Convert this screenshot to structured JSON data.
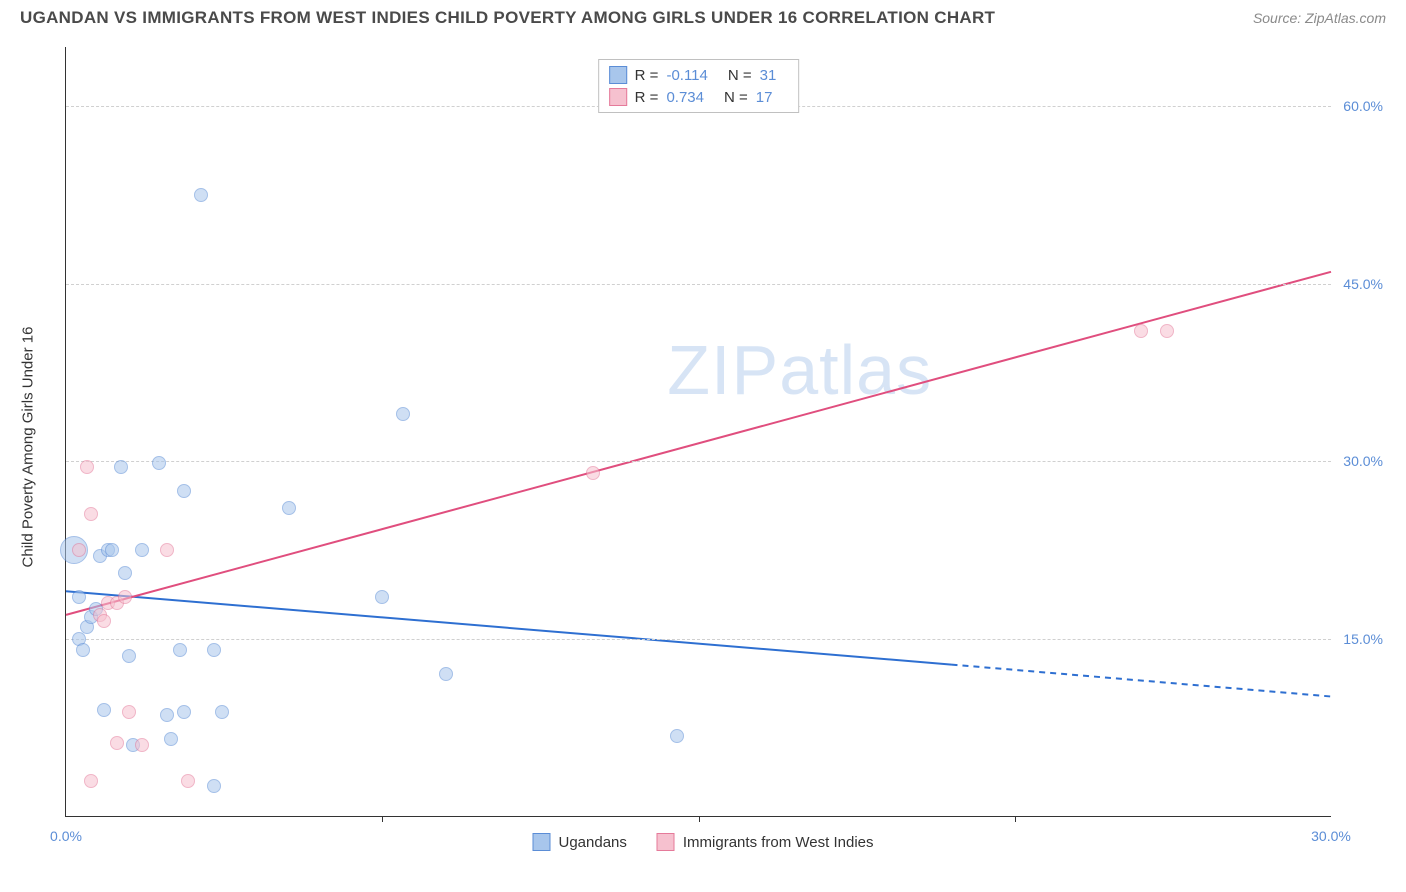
{
  "title": "UGANDAN VS IMMIGRANTS FROM WEST INDIES CHILD POVERTY AMONG GIRLS UNDER 16 CORRELATION CHART",
  "source": "Source: ZipAtlas.com",
  "watermark_a": "ZIP",
  "watermark_b": "atlas",
  "chart": {
    "type": "scatter",
    "background_color": "#ffffff",
    "grid_color": "#d0d0d0",
    "axis_color": "#333333",
    "ylabel": "Child Poverty Among Girls Under 16",
    "label_fontsize": 15,
    "tick_fontsize": 14,
    "tick_color": "#5b8dd6",
    "xlim": [
      0,
      30
    ],
    "ylim": [
      0,
      65
    ],
    "xticks": [
      {
        "v": 0.0,
        "label": "0.0%"
      },
      {
        "v": 30.0,
        "label": "30.0%"
      }
    ],
    "xtick_marks": [
      7.5,
      15.0,
      22.5
    ],
    "yticks": [
      {
        "v": 15.0,
        "label": "15.0%"
      },
      {
        "v": 30.0,
        "label": "30.0%"
      },
      {
        "v": 45.0,
        "label": "45.0%"
      },
      {
        "v": 60.0,
        "label": "60.0%"
      }
    ],
    "marker_radius": 7,
    "marker_opacity": 0.55,
    "series": {
      "a": {
        "name": "Ugandans",
        "fill": "#a8c6ec",
        "stroke": "#5b8dd6",
        "line_color": "#2e6fd1",
        "R_label": "R = ",
        "R": "-0.114",
        "N_label": "N = ",
        "N": "31",
        "trend": {
          "x1": 0,
          "y1": 19.0,
          "x2": 21.0,
          "y2": 12.8,
          "ext_x2": 30.0,
          "ext_y2": 10.1
        },
        "points": [
          {
            "x": 0.2,
            "y": 22.5,
            "r": 14
          },
          {
            "x": 3.2,
            "y": 52.5
          },
          {
            "x": 0.3,
            "y": 15.0
          },
          {
            "x": 0.5,
            "y": 16.0
          },
          {
            "x": 0.6,
            "y": 16.8
          },
          {
            "x": 0.7,
            "y": 17.5
          },
          {
            "x": 0.8,
            "y": 22.0
          },
          {
            "x": 1.0,
            "y": 22.5
          },
          {
            "x": 1.1,
            "y": 22.5
          },
          {
            "x": 1.3,
            "y": 29.5
          },
          {
            "x": 1.4,
            "y": 20.5
          },
          {
            "x": 1.5,
            "y": 13.5
          },
          {
            "x": 1.6,
            "y": 6.0
          },
          {
            "x": 1.8,
            "y": 22.5
          },
          {
            "x": 2.2,
            "y": 29.8
          },
          {
            "x": 2.4,
            "y": 8.5
          },
          {
            "x": 2.5,
            "y": 6.5
          },
          {
            "x": 2.7,
            "y": 14.0
          },
          {
            "x": 2.8,
            "y": 8.8
          },
          {
            "x": 2.8,
            "y": 27.5
          },
          {
            "x": 3.5,
            "y": 14.0
          },
          {
            "x": 3.5,
            "y": 2.5
          },
          {
            "x": 3.7,
            "y": 8.8
          },
          {
            "x": 5.3,
            "y": 26.0
          },
          {
            "x": 7.5,
            "y": 18.5
          },
          {
            "x": 8.0,
            "y": 34.0
          },
          {
            "x": 9.0,
            "y": 12.0
          },
          {
            "x": 14.5,
            "y": 6.8
          },
          {
            "x": 0.9,
            "y": 9.0
          },
          {
            "x": 0.4,
            "y": 14.0
          },
          {
            "x": 0.3,
            "y": 18.5
          }
        ]
      },
      "b": {
        "name": "Immigrants from West Indies",
        "fill": "#f6c1cf",
        "stroke": "#e57a9a",
        "line_color": "#e04e7e",
        "R_label": "R = ",
        "R": "0.734",
        "N_label": "N = ",
        "N": "17",
        "trend": {
          "x1": 0,
          "y1": 17.0,
          "x2": 30.0,
          "y2": 46.0
        },
        "points": [
          {
            "x": 0.3,
            "y": 22.5
          },
          {
            "x": 0.5,
            "y": 29.5
          },
          {
            "x": 0.6,
            "y": 25.5
          },
          {
            "x": 0.8,
            "y": 17.0
          },
          {
            "x": 0.9,
            "y": 16.5
          },
          {
            "x": 1.0,
            "y": 18.0
          },
          {
            "x": 1.2,
            "y": 18.0
          },
          {
            "x": 1.4,
            "y": 18.5
          },
          {
            "x": 1.5,
            "y": 8.8
          },
          {
            "x": 1.8,
            "y": 6.0
          },
          {
            "x": 1.2,
            "y": 6.2
          },
          {
            "x": 0.6,
            "y": 3.0
          },
          {
            "x": 2.4,
            "y": 22.5
          },
          {
            "x": 2.9,
            "y": 3.0
          },
          {
            "x": 12.5,
            "y": 29.0
          },
          {
            "x": 25.5,
            "y": 41.0
          },
          {
            "x": 26.1,
            "y": 41.0
          }
        ]
      }
    },
    "legend_top_order": [
      "a",
      "b"
    ],
    "legend_bottom_order": [
      "a",
      "b"
    ]
  }
}
